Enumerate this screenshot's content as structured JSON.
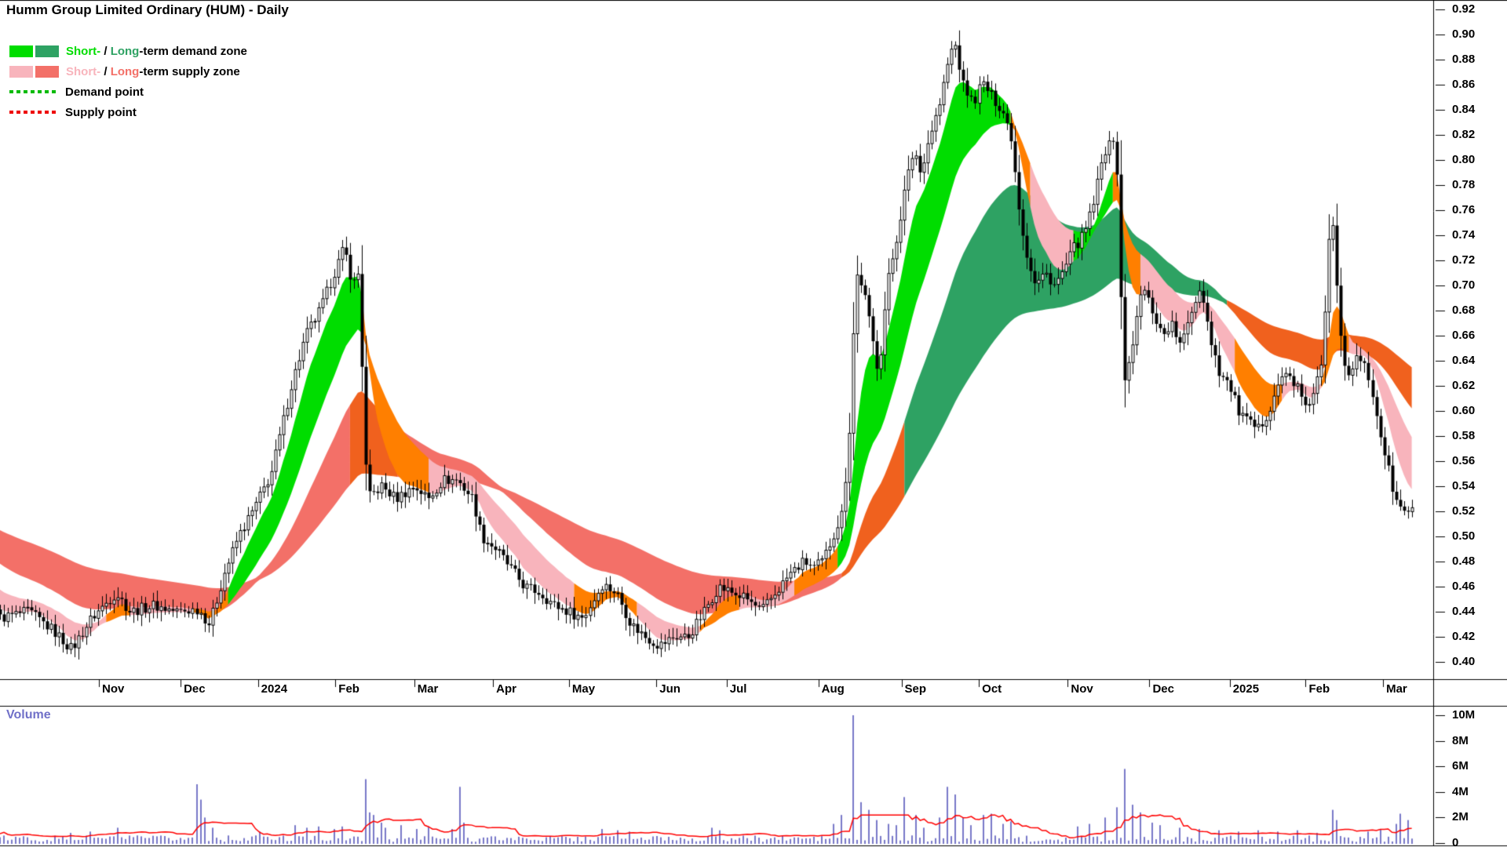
{
  "title": "Humm Group Limited Ordinary (HUM) - Daily",
  "legend": {
    "demand_zone": {
      "short_word": "Short-",
      "sep": " / ",
      "long_word": "Long",
      "suffix": "-term demand zone"
    },
    "supply_zone": {
      "short_word": "Short-",
      "sep": " / ",
      "long_word": "Long",
      "suffix": "-term supply zone"
    },
    "demand_point": {
      "label": "Demand point"
    },
    "supply_point": {
      "label": "Supply point"
    }
  },
  "volume_pane": {
    "label": "Volume",
    "label_color": "#7070c8"
  },
  "chart_data": {
    "type": "candlestick",
    "title": "Humm Group Limited Ordinary (HUM) - Daily",
    "y_axis": {
      "min": 0.4,
      "max": 0.92,
      "tick_step": 0.02,
      "ticks": [
        "0.92",
        "0.90",
        "0.88",
        "0.86",
        "0.84",
        "0.82",
        "0.80",
        "0.78",
        "0.76",
        "0.74",
        "0.72",
        "0.70",
        "0.68",
        "0.66",
        "0.64",
        "0.62",
        "0.60",
        "0.58",
        "0.56",
        "0.54",
        "0.52",
        "0.50",
        "0.48",
        "0.46",
        "0.44",
        "0.42",
        "0.40"
      ]
    },
    "x_axis": {
      "ticks": [
        {
          "label": "Nov",
          "f": 0.069
        },
        {
          "label": "Dec",
          "f": 0.126
        },
        {
          "label": "2024",
          "f": 0.18
        },
        {
          "label": "Feb",
          "f": 0.234
        },
        {
          "label": "Mar",
          "f": 0.289
        },
        {
          "label": "Apr",
          "f": 0.344
        },
        {
          "label": "May",
          "f": 0.397
        },
        {
          "label": "Jun",
          "f": 0.458
        },
        {
          "label": "Jul",
          "f": 0.507
        },
        {
          "label": "Aug",
          "f": 0.571
        },
        {
          "label": "Sep",
          "f": 0.629
        },
        {
          "label": "Oct",
          "f": 0.683
        },
        {
          "label": "Nov",
          "f": 0.745
        },
        {
          "label": "Dec",
          "f": 0.802
        },
        {
          "label": "2025",
          "f": 0.858
        },
        {
          "label": "Feb",
          "f": 0.911
        },
        {
          "label": "Mar",
          "f": 0.965
        }
      ]
    },
    "volume_axis": {
      "max": 10,
      "ticks": [
        {
          "label": "10M",
          "v": 10
        },
        {
          "label": "8M",
          "v": 8
        },
        {
          "label": "6M",
          "v": 6
        },
        {
          "label": "4M",
          "v": 4
        },
        {
          "label": "2M",
          "v": 2
        },
        {
          "label": "0",
          "v": 0
        }
      ]
    },
    "days": 360,
    "price_path": [
      [
        0.0,
        0.435
      ],
      [
        0.02,
        0.44
      ],
      [
        0.037,
        0.425
      ],
      [
        0.05,
        0.41
      ],
      [
        0.064,
        0.435
      ],
      [
        0.081,
        0.455
      ],
      [
        0.091,
        0.44
      ],
      [
        0.107,
        0.445
      ],
      [
        0.124,
        0.44
      ],
      [
        0.138,
        0.442
      ],
      [
        0.146,
        0.43
      ],
      [
        0.156,
        0.47
      ],
      [
        0.166,
        0.5
      ],
      [
        0.176,
        0.52
      ],
      [
        0.189,
        0.55
      ],
      [
        0.203,
        0.62
      ],
      [
        0.213,
        0.66
      ],
      [
        0.223,
        0.68
      ],
      [
        0.233,
        0.71
      ],
      [
        0.24,
        0.73
      ],
      [
        0.246,
        0.7
      ],
      [
        0.25,
        0.71
      ],
      [
        0.256,
        0.53
      ],
      [
        0.266,
        0.54
      ],
      [
        0.276,
        0.53
      ],
      [
        0.289,
        0.54
      ],
      [
        0.299,
        0.53
      ],
      [
        0.309,
        0.545
      ],
      [
        0.319,
        0.545
      ],
      [
        0.33,
        0.53
      ],
      [
        0.336,
        0.5
      ],
      [
        0.346,
        0.49
      ],
      [
        0.356,
        0.475
      ],
      [
        0.366,
        0.46
      ],
      [
        0.377,
        0.455
      ],
      [
        0.387,
        0.445
      ],
      [
        0.397,
        0.44
      ],
      [
        0.407,
        0.435
      ],
      [
        0.42,
        0.462
      ],
      [
        0.43,
        0.455
      ],
      [
        0.44,
        0.43
      ],
      [
        0.45,
        0.42
      ],
      [
        0.46,
        0.413
      ],
      [
        0.47,
        0.42
      ],
      [
        0.48,
        0.42
      ],
      [
        0.491,
        0.44
      ],
      [
        0.501,
        0.46
      ],
      [
        0.511,
        0.455
      ],
      [
        0.521,
        0.45
      ],
      [
        0.531,
        0.44
      ],
      [
        0.541,
        0.455
      ],
      [
        0.551,
        0.47
      ],
      [
        0.561,
        0.48
      ],
      [
        0.568,
        0.475
      ],
      [
        0.574,
        0.48
      ],
      [
        0.581,
        0.5
      ],
      [
        0.588,
        0.52
      ],
      [
        0.593,
        0.59
      ],
      [
        0.597,
        0.71
      ],
      [
        0.602,
        0.7
      ],
      [
        0.609,
        0.655
      ],
      [
        0.613,
        0.63
      ],
      [
        0.619,
        0.7
      ],
      [
        0.626,
        0.74
      ],
      [
        0.632,
        0.78
      ],
      [
        0.638,
        0.81
      ],
      [
        0.642,
        0.79
      ],
      [
        0.649,
        0.82
      ],
      [
        0.656,
        0.845
      ],
      [
        0.662,
        0.88
      ],
      [
        0.666,
        0.895
      ],
      [
        0.672,
        0.86
      ],
      [
        0.679,
        0.845
      ],
      [
        0.685,
        0.862
      ],
      [
        0.692,
        0.85
      ],
      [
        0.699,
        0.84
      ],
      [
        0.705,
        0.82
      ],
      [
        0.711,
        0.76
      ],
      [
        0.715,
        0.73
      ],
      [
        0.722,
        0.7
      ],
      [
        0.729,
        0.71
      ],
      [
        0.736,
        0.7
      ],
      [
        0.742,
        0.712
      ],
      [
        0.749,
        0.73
      ],
      [
        0.756,
        0.74
      ],
      [
        0.762,
        0.762
      ],
      [
        0.769,
        0.8
      ],
      [
        0.774,
        0.82
      ],
      [
        0.779,
        0.8
      ],
      [
        0.784,
        0.618
      ],
      [
        0.791,
        0.66
      ],
      [
        0.797,
        0.7
      ],
      [
        0.804,
        0.68
      ],
      [
        0.811,
        0.66
      ],
      [
        0.817,
        0.67
      ],
      [
        0.824,
        0.65
      ],
      [
        0.831,
        0.68
      ],
      [
        0.838,
        0.7
      ],
      [
        0.844,
        0.66
      ],
      [
        0.851,
        0.63
      ],
      [
        0.858,
        0.62
      ],
      [
        0.864,
        0.6
      ],
      [
        0.871,
        0.59
      ],
      [
        0.878,
        0.585
      ],
      [
        0.885,
        0.6
      ],
      [
        0.891,
        0.62
      ],
      [
        0.898,
        0.63
      ],
      [
        0.905,
        0.62
      ],
      [
        0.911,
        0.6
      ],
      [
        0.918,
        0.62
      ],
      [
        0.923,
        0.64
      ],
      [
        0.929,
        0.77
      ],
      [
        0.933,
        0.7
      ],
      [
        0.937,
        0.645
      ],
      [
        0.941,
        0.63
      ],
      [
        0.945,
        0.64
      ],
      [
        0.95,
        0.64
      ],
      [
        0.954,
        0.63
      ],
      [
        0.96,
        0.6
      ],
      [
        0.964,
        0.575
      ],
      [
        0.969,
        0.55
      ],
      [
        0.973,
        0.53
      ],
      [
        0.978,
        0.52
      ],
      [
        0.985,
        0.52
      ]
    ],
    "band_seeds": {
      "ema8": 0.447,
      "ema21": 0.458,
      "ema40": 0.482,
      "ema90": 0.505
    },
    "band_segments": {
      "short": [
        [
          0.0,
          0.075,
          "supply"
        ],
        [
          0.075,
          0.09,
          "transition"
        ],
        [
          0.09,
          0.135,
          "supply"
        ],
        [
          0.135,
          0.158,
          "transition"
        ],
        [
          0.158,
          0.252,
          "demand"
        ],
        [
          0.252,
          0.3,
          "transition"
        ],
        [
          0.3,
          0.4,
          "supply"
        ],
        [
          0.4,
          0.445,
          "transition"
        ],
        [
          0.445,
          0.488,
          "supply"
        ],
        [
          0.488,
          0.515,
          "transition"
        ],
        [
          0.515,
          0.555,
          "supply"
        ],
        [
          0.555,
          0.585,
          "transition"
        ],
        [
          0.585,
          0.705,
          "demand"
        ],
        [
          0.705,
          0.72,
          "transition"
        ],
        [
          0.72,
          0.75,
          "supply"
        ],
        [
          0.75,
          0.777,
          "demand"
        ],
        [
          0.777,
          0.795,
          "transition"
        ],
        [
          0.795,
          0.862,
          "supply"
        ],
        [
          0.862,
          0.895,
          "transition"
        ],
        [
          0.895,
          0.922,
          "supply"
        ],
        [
          0.922,
          0.942,
          "transition"
        ],
        [
          0.942,
          0.985,
          "supply"
        ]
      ],
      "long": [
        [
          0.0,
          0.245,
          "supply"
        ],
        [
          0.245,
          0.278,
          "transition"
        ],
        [
          0.278,
          0.588,
          "supply"
        ],
        [
          0.588,
          0.632,
          "transition"
        ],
        [
          0.632,
          0.855,
          "demand"
        ],
        [
          0.855,
          0.985,
          "transition"
        ]
      ]
    },
    "volume_base": 0.5,
    "volume_spikes": [
      [
        0.05,
        0.8
      ],
      [
        0.064,
        0.9
      ],
      [
        0.081,
        1.2
      ],
      [
        0.136,
        1.0
      ],
      [
        0.138,
        4.6
      ],
      [
        0.141,
        3.4
      ],
      [
        0.144,
        2.0
      ],
      [
        0.148,
        1.2
      ],
      [
        0.18,
        0.9
      ],
      [
        0.205,
        1.4
      ],
      [
        0.213,
        1.2
      ],
      [
        0.222,
        1.3
      ],
      [
        0.233,
        1.1
      ],
      [
        0.24,
        1.3
      ],
      [
        0.256,
        5.0
      ],
      [
        0.259,
        2.4
      ],
      [
        0.262,
        2.2
      ],
      [
        0.266,
        1.6
      ],
      [
        0.27,
        1.2
      ],
      [
        0.28,
        1.4
      ],
      [
        0.29,
        1.1
      ],
      [
        0.3,
        1.3
      ],
      [
        0.316,
        1.1
      ],
      [
        0.321,
        4.4
      ],
      [
        0.325,
        1.6
      ],
      [
        0.42,
        1.1
      ],
      [
        0.43,
        1.0
      ],
      [
        0.44,
        0.9
      ],
      [
        0.497,
        1.2
      ],
      [
        0.503,
        1.0
      ],
      [
        0.581,
        1.5
      ],
      [
        0.588,
        2.2
      ],
      [
        0.595,
        10.0
      ],
      [
        0.6,
        3.2
      ],
      [
        0.606,
        2.6
      ],
      [
        0.613,
        1.8
      ],
      [
        0.619,
        1.5
      ],
      [
        0.626,
        1.4
      ],
      [
        0.632,
        3.6
      ],
      [
        0.638,
        2.2
      ],
      [
        0.645,
        1.2
      ],
      [
        0.656,
        2.0
      ],
      [
        0.662,
        4.4
      ],
      [
        0.668,
        3.8
      ],
      [
        0.672,
        2.0
      ],
      [
        0.679,
        1.4
      ],
      [
        0.685,
        2.2
      ],
      [
        0.692,
        2.3
      ],
      [
        0.699,
        1.5
      ],
      [
        0.705,
        1.7
      ],
      [
        0.752,
        1.3
      ],
      [
        0.76,
        1.5
      ],
      [
        0.77,
        2.0
      ],
      [
        0.779,
        2.8
      ],
      [
        0.784,
        5.8
      ],
      [
        0.791,
        3.0
      ],
      [
        0.797,
        2.4
      ],
      [
        0.804,
        1.6
      ],
      [
        0.81,
        1.4
      ],
      [
        0.824,
        1.2
      ],
      [
        0.838,
        1.1
      ],
      [
        0.851,
        1.0
      ],
      [
        0.864,
        0.9
      ],
      [
        0.878,
        1.0
      ],
      [
        0.891,
        0.9
      ],
      [
        0.905,
        1.0
      ],
      [
        0.918,
        0.8
      ],
      [
        0.929,
        2.6
      ],
      [
        0.933,
        1.8
      ],
      [
        0.955,
        0.9
      ],
      [
        0.964,
        1.1
      ],
      [
        0.973,
        1.5
      ],
      [
        0.978,
        2.3
      ],
      [
        0.983,
        1.8
      ]
    ],
    "colors": {
      "demand_short": "#00dd00",
      "demand_long": "#2ea263",
      "supply_short": "#f8b4bc",
      "supply_long": "#f37068",
      "transition_short": "#ff7f00",
      "transition_long": "#f0611e",
      "demand_point": "#00bb00",
      "supply_point": "#ee0000",
      "candle": "#000000",
      "volume_bar": "#7878c8",
      "volume_avg": "#ff0000"
    }
  }
}
